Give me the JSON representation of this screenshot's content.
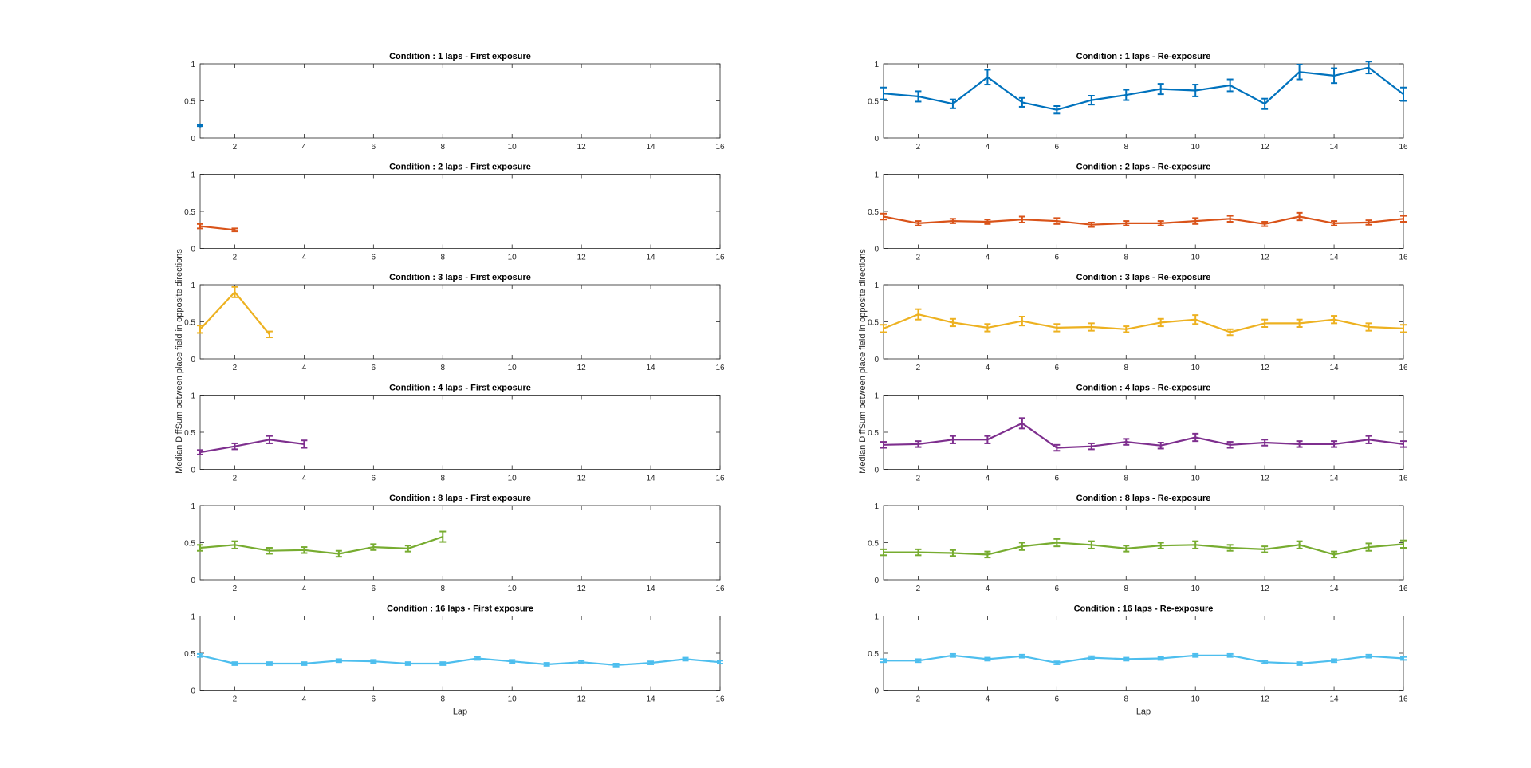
{
  "figure": {
    "ylabel": "Median DiffSum between place field in opposite directions",
    "xlabel": "Lap"
  },
  "chart_data": [
    {
      "type": "line",
      "title": "Condition : 1 laps - First exposure",
      "color": "#0072BD",
      "xlim": [
        1,
        16
      ],
      "ylim": [
        0,
        1
      ],
      "xticks": [
        2,
        4,
        6,
        8,
        10,
        12,
        14,
        16
      ],
      "yticks": [
        0,
        0.5,
        1
      ],
      "xlabel": "",
      "x": [
        1
      ],
      "y": [
        0.17
      ],
      "err": [
        0.01
      ]
    },
    {
      "type": "line",
      "title": "Condition : 1 laps - Re-exposure",
      "color": "#0072BD",
      "xlim": [
        1,
        16
      ],
      "ylim": [
        0,
        1
      ],
      "xticks": [
        2,
        4,
        6,
        8,
        10,
        12,
        14,
        16
      ],
      "yticks": [
        0,
        0.5,
        1
      ],
      "xlabel": "",
      "x": [
        1,
        2,
        3,
        4,
        5,
        6,
        7,
        8,
        9,
        10,
        11,
        12,
        13,
        14,
        15,
        16
      ],
      "y": [
        0.6,
        0.56,
        0.46,
        0.82,
        0.48,
        0.38,
        0.51,
        0.58,
        0.66,
        0.64,
        0.71,
        0.46,
        0.89,
        0.84,
        0.95,
        0.59
      ],
      "err": [
        0.08,
        0.07,
        0.06,
        0.1,
        0.06,
        0.05,
        0.06,
        0.07,
        0.07,
        0.08,
        0.08,
        0.07,
        0.1,
        0.1,
        0.08,
        0.09
      ]
    },
    {
      "type": "line",
      "title": "Condition : 2 laps - First exposure",
      "color": "#D95319",
      "xlim": [
        1,
        16
      ],
      "ylim": [
        0,
        1
      ],
      "xticks": [
        2,
        4,
        6,
        8,
        10,
        12,
        14,
        16
      ],
      "yticks": [
        0,
        0.5,
        1
      ],
      "xlabel": "",
      "x": [
        1,
        2
      ],
      "y": [
        0.3,
        0.25
      ],
      "err": [
        0.03,
        0.02
      ]
    },
    {
      "type": "line",
      "title": "Condition : 2 laps - Re-exposure",
      "color": "#D95319",
      "xlim": [
        1,
        16
      ],
      "ylim": [
        0,
        1
      ],
      "xticks": [
        2,
        4,
        6,
        8,
        10,
        12,
        14,
        16
      ],
      "yticks": [
        0,
        0.5,
        1
      ],
      "xlabel": "",
      "x": [
        1,
        2,
        3,
        4,
        5,
        6,
        7,
        8,
        9,
        10,
        11,
        12,
        13,
        14,
        15,
        16
      ],
      "y": [
        0.43,
        0.34,
        0.37,
        0.36,
        0.39,
        0.37,
        0.32,
        0.34,
        0.34,
        0.37,
        0.4,
        0.33,
        0.43,
        0.34,
        0.35,
        0.4
      ],
      "err": [
        0.04,
        0.03,
        0.03,
        0.03,
        0.04,
        0.04,
        0.03,
        0.03,
        0.03,
        0.04,
        0.04,
        0.03,
        0.05,
        0.03,
        0.03,
        0.04
      ]
    },
    {
      "type": "line",
      "title": "Condition : 3 laps - First exposure",
      "color": "#EDB120",
      "xlim": [
        1,
        16
      ],
      "ylim": [
        0,
        1
      ],
      "xticks": [
        2,
        4,
        6,
        8,
        10,
        12,
        14,
        16
      ],
      "yticks": [
        0,
        0.5,
        1
      ],
      "xlabel": "",
      "x": [
        1,
        2,
        3
      ],
      "y": [
        0.4,
        0.9,
        0.33
      ],
      "err": [
        0.05,
        0.07,
        0.04
      ]
    },
    {
      "type": "line",
      "title": "Condition : 3 laps - Re-exposure",
      "color": "#EDB120",
      "xlim": [
        1,
        16
      ],
      "ylim": [
        0,
        1
      ],
      "xticks": [
        2,
        4,
        6,
        8,
        10,
        12,
        14,
        16
      ],
      "yticks": [
        0,
        0.5,
        1
      ],
      "xlabel": "",
      "x": [
        1,
        2,
        3,
        4,
        5,
        6,
        7,
        8,
        9,
        10,
        11,
        12,
        13,
        14,
        15,
        16
      ],
      "y": [
        0.41,
        0.6,
        0.49,
        0.42,
        0.51,
        0.42,
        0.43,
        0.4,
        0.49,
        0.53,
        0.36,
        0.48,
        0.48,
        0.53,
        0.43,
        0.41
      ],
      "err": [
        0.05,
        0.07,
        0.05,
        0.05,
        0.06,
        0.05,
        0.05,
        0.04,
        0.05,
        0.06,
        0.04,
        0.05,
        0.05,
        0.05,
        0.05,
        0.05
      ]
    },
    {
      "type": "line",
      "title": "Condition : 4 laps - First exposure",
      "color": "#7E2F8E",
      "xlim": [
        1,
        16
      ],
      "ylim": [
        0,
        1
      ],
      "xticks": [
        2,
        4,
        6,
        8,
        10,
        12,
        14,
        16
      ],
      "yticks": [
        0,
        0.5,
        1
      ],
      "xlabel": "",
      "x": [
        1,
        2,
        3,
        4
      ],
      "y": [
        0.23,
        0.31,
        0.4,
        0.34
      ],
      "err": [
        0.03,
        0.04,
        0.05,
        0.05
      ]
    },
    {
      "type": "line",
      "title": "Condition : 4 laps - Re-exposure",
      "color": "#7E2F8E",
      "xlim": [
        1,
        16
      ],
      "ylim": [
        0,
        1
      ],
      "xticks": [
        2,
        4,
        6,
        8,
        10,
        12,
        14,
        16
      ],
      "yticks": [
        0,
        0.5,
        1
      ],
      "xlabel": "",
      "x": [
        1,
        2,
        3,
        4,
        5,
        6,
        7,
        8,
        9,
        10,
        11,
        12,
        13,
        14,
        15,
        16
      ],
      "y": [
        0.33,
        0.34,
        0.4,
        0.4,
        0.62,
        0.29,
        0.31,
        0.37,
        0.32,
        0.43,
        0.33,
        0.36,
        0.34,
        0.34,
        0.4,
        0.34
      ],
      "err": [
        0.04,
        0.04,
        0.05,
        0.05,
        0.07,
        0.04,
        0.04,
        0.04,
        0.04,
        0.05,
        0.04,
        0.04,
        0.04,
        0.04,
        0.05,
        0.04
      ]
    },
    {
      "type": "line",
      "title": "Condition : 8 laps - First exposure",
      "color": "#77AC30",
      "xlim": [
        1,
        16
      ],
      "ylim": [
        0,
        1
      ],
      "xticks": [
        2,
        4,
        6,
        8,
        10,
        12,
        14,
        16
      ],
      "yticks": [
        0,
        0.5,
        1
      ],
      "xlabel": "",
      "x": [
        1,
        2,
        3,
        4,
        5,
        6,
        7,
        8
      ],
      "y": [
        0.43,
        0.47,
        0.39,
        0.4,
        0.35,
        0.44,
        0.42,
        0.58
      ],
      "err": [
        0.04,
        0.05,
        0.04,
        0.04,
        0.04,
        0.04,
        0.04,
        0.07
      ]
    },
    {
      "type": "line",
      "title": "Condition : 8 laps - Re-exposure",
      "color": "#77AC30",
      "xlim": [
        1,
        16
      ],
      "ylim": [
        0,
        1
      ],
      "xticks": [
        2,
        4,
        6,
        8,
        10,
        12,
        14,
        16
      ],
      "yticks": [
        0,
        0.5,
        1
      ],
      "xlabel": "",
      "x": [
        1,
        2,
        3,
        4,
        5,
        6,
        7,
        8,
        9,
        10,
        11,
        12,
        13,
        14,
        15,
        16
      ],
      "y": [
        0.37,
        0.37,
        0.36,
        0.34,
        0.45,
        0.5,
        0.47,
        0.42,
        0.46,
        0.47,
        0.43,
        0.41,
        0.47,
        0.34,
        0.44,
        0.48
      ],
      "err": [
        0.04,
        0.04,
        0.04,
        0.04,
        0.05,
        0.05,
        0.05,
        0.04,
        0.04,
        0.05,
        0.04,
        0.04,
        0.05,
        0.04,
        0.05,
        0.05
      ]
    },
    {
      "type": "line",
      "title": "Condition : 16 laps - First exposure",
      "color": "#4DBEEE",
      "xlim": [
        1,
        16
      ],
      "ylim": [
        0,
        1
      ],
      "xticks": [
        2,
        4,
        6,
        8,
        10,
        12,
        14,
        16
      ],
      "yticks": [
        0,
        0.5,
        1
      ],
      "xlabel": "Lap",
      "x": [
        1,
        2,
        3,
        4,
        5,
        6,
        7,
        8,
        9,
        10,
        11,
        12,
        13,
        14,
        15,
        16
      ],
      "y": [
        0.47,
        0.36,
        0.36,
        0.36,
        0.4,
        0.39,
        0.36,
        0.36,
        0.43,
        0.39,
        0.35,
        0.38,
        0.34,
        0.37,
        0.42,
        0.38
      ],
      "err": [
        0.02,
        0.02,
        0.02,
        0.02,
        0.02,
        0.02,
        0.02,
        0.02,
        0.02,
        0.02,
        0.02,
        0.02,
        0.02,
        0.02,
        0.02,
        0.02
      ]
    },
    {
      "type": "line",
      "title": "Condition : 16 laps - Re-exposure",
      "color": "#4DBEEE",
      "xlim": [
        1,
        16
      ],
      "ylim": [
        0,
        1
      ],
      "xticks": [
        2,
        4,
        6,
        8,
        10,
        12,
        14,
        16
      ],
      "yticks": [
        0,
        0.5,
        1
      ],
      "xlabel": "Lap",
      "x": [
        1,
        2,
        3,
        4,
        5,
        6,
        7,
        8,
        9,
        10,
        11,
        12,
        13,
        14,
        15,
        16
      ],
      "y": [
        0.4,
        0.4,
        0.47,
        0.42,
        0.46,
        0.37,
        0.44,
        0.42,
        0.43,
        0.47,
        0.47,
        0.38,
        0.36,
        0.4,
        0.46,
        0.43
      ],
      "err": [
        0.02,
        0.02,
        0.02,
        0.02,
        0.02,
        0.02,
        0.02,
        0.02,
        0.02,
        0.02,
        0.02,
        0.02,
        0.02,
        0.02,
        0.02,
        0.02
      ]
    }
  ]
}
